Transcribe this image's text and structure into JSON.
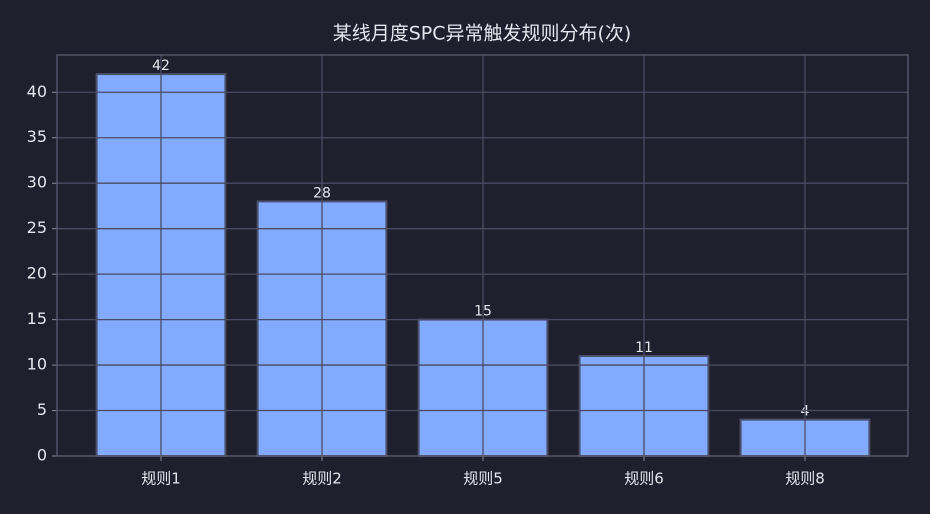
{
  "chart_data": {
    "type": "bar",
    "title": "某线月度SPC异常触发规则分布(次)",
    "categories": [
      "规则1",
      "规则2",
      "规则5",
      "规则6",
      "规则8"
    ],
    "values": [
      42,
      28,
      15,
      11,
      4
    ],
    "color": "#82aaff",
    "edgecolor": "#4a4f6a",
    "ylim": [
      0,
      44.1
    ],
    "yticks": [
      0,
      5,
      10,
      15,
      20,
      25,
      30,
      35,
      40
    ],
    "grid": true
  }
}
